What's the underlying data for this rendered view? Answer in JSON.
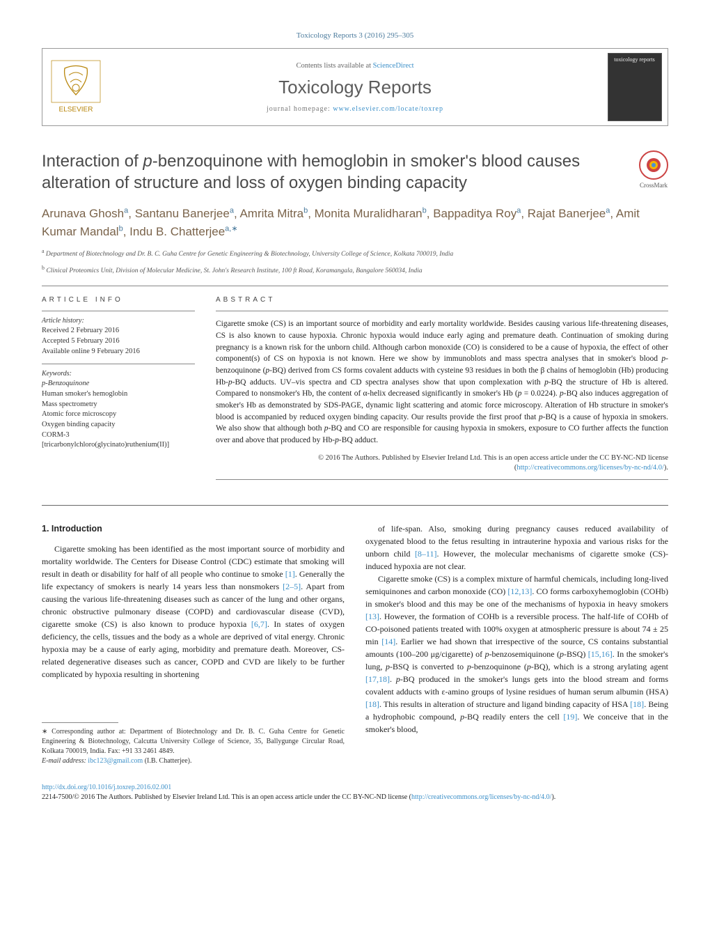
{
  "journal_ref": "Toxicology Reports 3 (2016) 295–305",
  "header": {
    "contents_at": "Contents lists available at ",
    "contents_link": "ScienceDirect",
    "journal_name": "Toxicology Reports",
    "homepage_prefix": "journal homepage: ",
    "homepage_url": "www.elsevier.com/locate/toxrep",
    "publisher": "ELSEVIER",
    "cover_label": "toxicology reports"
  },
  "article": {
    "title_html": "Interaction of <em>p</em>-benzoquinone with hemoglobin in smoker's blood causes alteration of structure and loss of oxygen binding capacity",
    "crossmark": "CrossMark"
  },
  "authors_html": "Arunava Ghosh<sup>a</sup>, Santanu Banerjee<sup>a</sup>, Amrita Mitra<sup>b</sup>, Monita Muralidharan<sup>b</sup>, Bappaditya Roy<sup>a</sup>, Rajat Banerjee<sup>a</sup>, Amit Kumar Mandal<sup>b</sup>, Indu B. Chatterjee<sup>a,∗</sup>",
  "affiliations": [
    {
      "sup": "a",
      "text": "Department of Biotechnology and Dr. B. C. Guha Centre for Genetic Engineering & Biotechnology, University College of Science, Kolkata 700019, India"
    },
    {
      "sup": "b",
      "text": "Clinical Proteomics Unit, Division of Molecular Medicine, St. John's Research Institute, 100 ft Road, Koramangala, Bangalore 560034, India"
    }
  ],
  "info": {
    "section_label": "ARTICLE INFO",
    "history_label": "Article history:",
    "history": [
      "Received 2 February 2016",
      "Accepted 5 February 2016",
      "Available online 9 February 2016"
    ],
    "keywords_label": "Keywords:",
    "keywords": [
      "p-Benzoquinone",
      "Human smoker's hemoglobin",
      "Mass spectrometry",
      "Atomic force microscopy",
      "Oxygen binding capacity",
      "CORM-3 [tricarbonylchloro(glycinato)ruthenium(II)]"
    ]
  },
  "abstract": {
    "label": "ABSTRACT",
    "text_html": "Cigarette smoke (CS) is an important source of morbidity and early mortality worldwide. Besides causing various life-threatening diseases, CS is also known to cause hypoxia. Chronic hypoxia would induce early aging and premature death. Continuation of smoking during pregnancy is a known risk for the unborn child. Although carbon monoxide (CO) is considered to be a cause of hypoxia, the effect of other component(s) of CS on hypoxia is not known. Here we show by immunoblots and mass spectra analyses that in smoker's blood <em>p</em>-benzoquinone (<em>p</em>-BQ) derived from CS forms covalent adducts with cysteine 93 residues in both the β chains of hemoglobin (Hb) producing Hb-<em>p</em>-BQ adducts. UV–vis spectra and CD spectra analyses show that upon complexation with <em>p</em>-BQ the structure of Hb is altered. Compared to nonsmoker's Hb, the content of α-helix decreased significantly in smoker's Hb (<em>p</em> = 0.0224). <em>p</em>-BQ also induces aggregation of smoker's Hb as demonstrated by SDS-PAGE, dynamic light scattering and atomic force microscopy. Alteration of Hb structure in smoker's blood is accompanied by reduced oxygen binding capacity. Our results provide the first proof that <em>p</em>-BQ is a cause of hypoxia in smokers. We also show that although both <em>p</em>-BQ and CO are responsible for causing hypoxia in smokers, exposure to CO further affects the function over and above that produced by Hb-<em>p</em>-BQ adduct.",
    "copyright": "© 2016 The Authors. Published by Elsevier Ireland Ltd. This is an open access article under the CC BY-NC-ND license (",
    "copyright_url": "http://creativecommons.org/licenses/by-nc-nd/4.0/",
    "copyright_close": ")."
  },
  "body": {
    "h1": "1. Introduction",
    "p1_html": "Cigarette smoking has been identified as the most important source of morbidity and mortality worldwide. The Centers for Disease Control (CDC) estimate that smoking will result in death or disability for half of all people who continue to smoke <a>[1]</a>. Generally the life expectancy of smokers is nearly 14 years less than nonsmokers <a>[2–5]</a>. Apart from causing the various life-threatening diseases such as cancer of the lung and other organs, chronic obstructive pulmonary disease (COPD) and cardiovascular disease (CVD), cigarette smoke (CS) is also known to produce hypoxia <a>[6,7]</a>. In states of oxygen deficiency, the cells, tissues and the body as a whole are deprived of vital energy. Chronic hypoxia may be a cause of early aging, morbidity and premature death. Moreover, CS-related degenerative diseases such as cancer, COPD and CVD are likely to be further complicated by hypoxia resulting in shortening",
    "p2_html": "of life-span. Also, smoking during pregnancy causes reduced availability of oxygenated blood to the fetus resulting in intrauterine hypoxia and various risks for the unborn child <a>[8–11]</a>. However, the molecular mechanisms of cigarette smoke (CS)-induced hypoxia are not clear.",
    "p3_html": "Cigarette smoke (CS) is a complex mixture of harmful chemicals, including long-lived semiquinones and carbon monoxide (CO) <a>[12,13]</a>. CO forms carboxyhemoglobin (COHb) in smoker's blood and this may be one of the mechanisms of hypoxia in heavy smokers <a>[13]</a>. However, the formation of COHb is a reversible process. The half-life of COHb of CO-poisoned patients treated with 100% oxygen at atmospheric pressure is about 74 ± 25 min <a>[14]</a>. Earlier we had shown that irrespective of the source, CS contains substantial amounts (100–200 μg/cigarette) of <em>p</em>-benzosemiquinone (<em>p</em>-BSQ) <a>[15,16]</a>. In the smoker's lung, <em>p</em>-BSQ is converted to <em>p</em>-benzoquinone (<em>p</em>-BQ), which is a strong arylating agent <a>[17,18]</a>. <em>p</em>-BQ produced in the smoker's lungs gets into the blood stream and forms covalent adducts with ε-amino groups of lysine residues of human serum albumin (HSA) <a>[18]</a>. This results in alteration of structure and ligand binding capacity of HSA <a>[18]</a>. Being a hydrophobic compound, <em>p</em>-BQ readily enters the cell <a>[19]</a>. We conceive that in the smoker's blood,"
  },
  "footnote": {
    "corr": "∗ Corresponding author at: Department of Biotechnology and Dr. B. C. Guha Centre for Genetic Engineering & Biotechnology, Calcutta University College of Science, 35, Ballygunge Circular Road, Kolkata 700019, India. Fax: +91 33 2461 4849.",
    "email_label": "E-mail address: ",
    "email": "ibc123@gmail.com",
    "email_suffix": " (I.B. Chatterjee)."
  },
  "footer": {
    "doi": "http://dx.doi.org/10.1016/j.toxrep.2016.02.001",
    "issn_line": "2214-7500/© 2016 The Authors. Published by Elsevier Ireland Ltd. This is an open access article under the CC BY-NC-ND license (",
    "issn_url": "http://creativecommons.org/licenses/by-nc-nd/4.0/",
    "issn_close": ")."
  }
}
